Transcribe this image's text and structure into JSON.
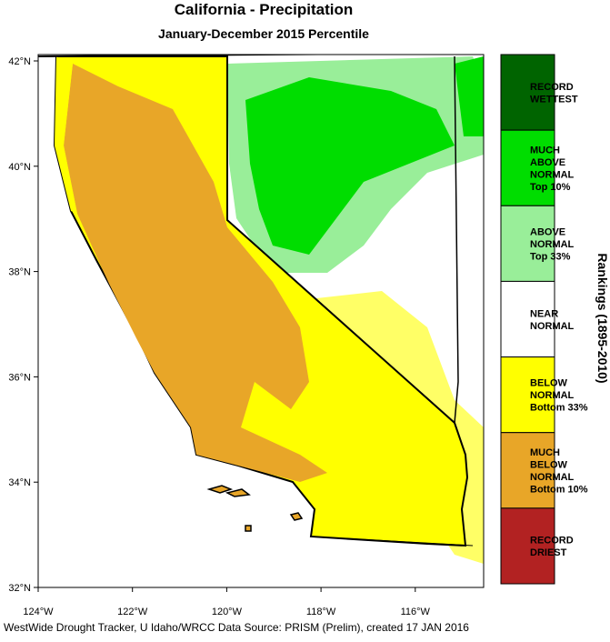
{
  "header": {
    "title": "California - Precipitation",
    "subtitle": "January-December 2015 Percentile"
  },
  "axes": {
    "lat_ticks": [
      "42°N",
      "40°N",
      "38°N",
      "36°N",
      "34°N",
      "32°N"
    ],
    "lon_ticks": [
      "124°W",
      "122°W",
      "120°W",
      "118°W",
      "116°W"
    ]
  },
  "legend": {
    "title": "Rankings (1895-2010)",
    "items": [
      {
        "label": [
          "RECORD",
          "WETTEST"
        ],
        "color": "#006400"
      },
      {
        "label": [
          "MUCH",
          "ABOVE",
          "NORMAL",
          "Top 10%"
        ],
        "color": "#00dd00"
      },
      {
        "label": [
          "ABOVE",
          "NORMAL",
          "Top 33%"
        ],
        "color": "#99ee99"
      },
      {
        "label": [
          "NEAR",
          "NORMAL"
        ],
        "color": "#ffffff"
      },
      {
        "label": [
          "BELOW",
          "NORMAL",
          "Bottom 33%"
        ],
        "color": "#ffff00"
      },
      {
        "label": [
          "MUCH",
          "BELOW",
          "NORMAL",
          "Bottom 10%"
        ],
        "color": "#e8a628"
      },
      {
        "label": [
          "RECORD",
          "DRIEST"
        ],
        "color": "#b22222"
      }
    ]
  },
  "footer": "WestWide Drought Tracker, U Idaho/WRCC Data Source: PRISM (Prelim), created 17 JAN 2016"
}
